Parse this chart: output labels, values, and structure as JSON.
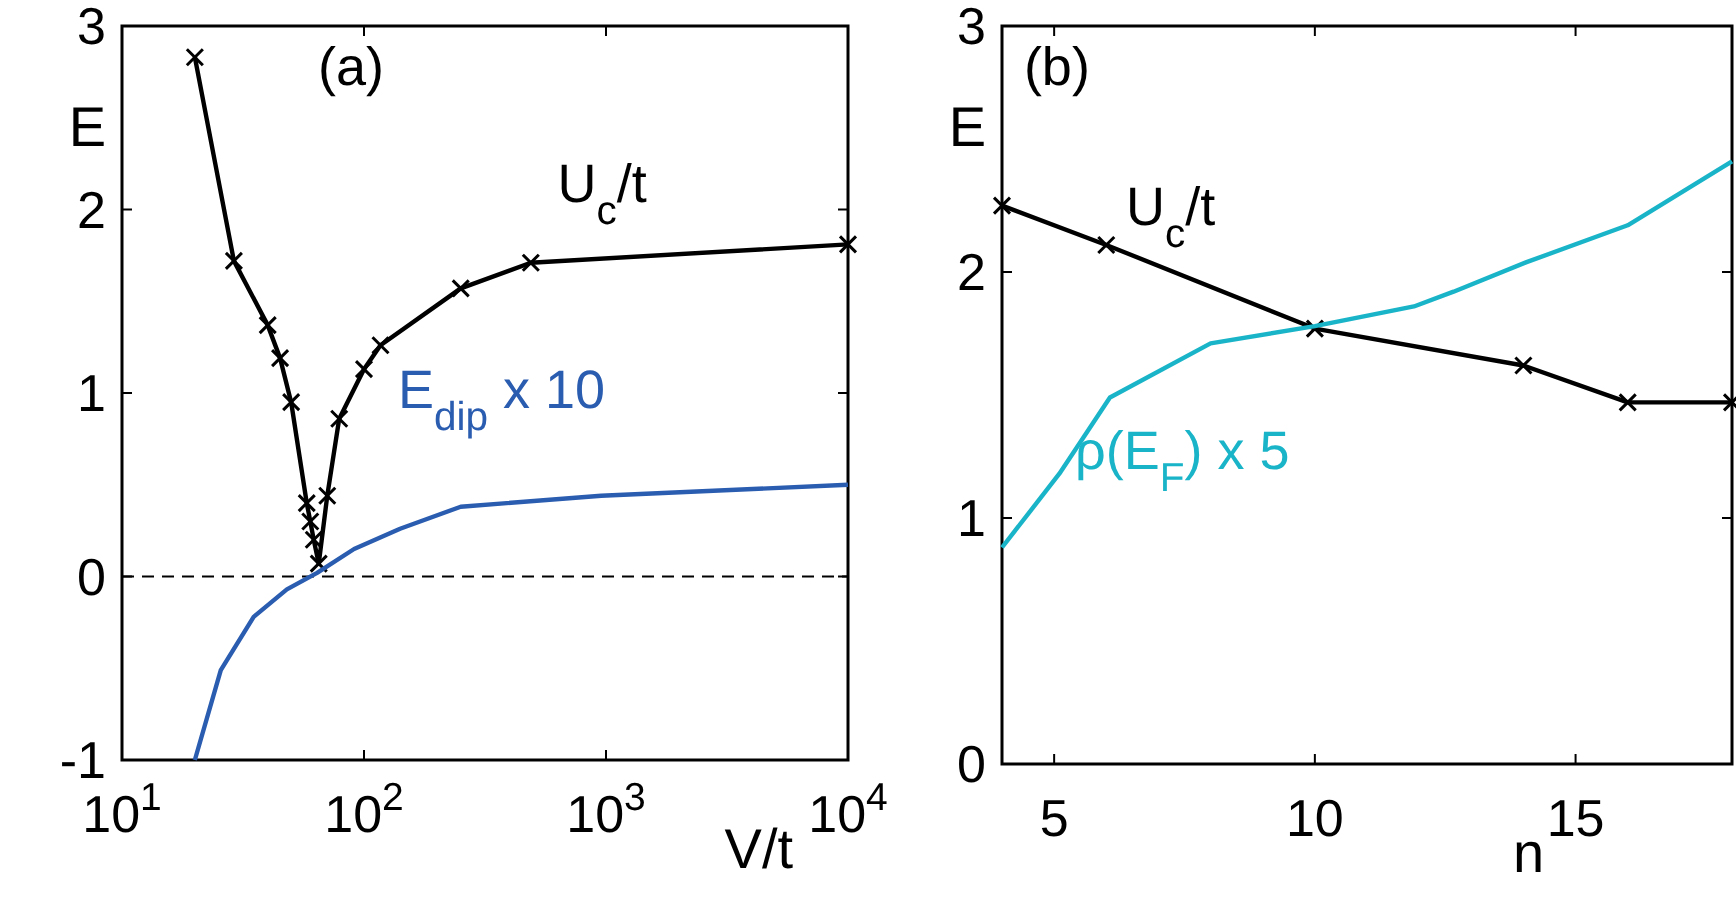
{
  "chart_data": [
    {
      "type": "line",
      "title": "(a)",
      "xlabel": "V/t",
      "ylabel": "E",
      "log": "x",
      "xlim": [
        10,
        10000
      ],
      "xticks": [
        {
          "value": 10,
          "label": "10$^{1}$"
        },
        {
          "value": 100,
          "label": "10$^{2}$"
        },
        {
          "value": 1000,
          "label": "10$^{3}$"
        },
        {
          "value": 10000,
          "label": "10$^{4}$"
        }
      ],
      "ylim": [
        -1,
        3
      ],
      "yticks": [
        -1,
        0,
        1,
        2,
        3
      ],
      "grid": false,
      "ref_lines": [
        {
          "axis": "y",
          "value": 0,
          "color": "#000000",
          "line_style": "dashed"
        }
      ],
      "series": [
        {
          "name": "U$_{c}$/t",
          "color": "#000000",
          "marker": "cross",
          "line_style": "solid",
          "x": [
            20,
            29,
            40,
            45,
            50,
            58,
            60,
            62,
            65,
            70.5,
            79,
            100,
            117,
            251,
            489,
            10000
          ],
          "values": [
            2.83,
            1.72,
            1.37,
            1.19,
            0.95,
            0.4,
            0.3,
            0.2,
            0.07,
            0.44,
            0.86,
            1.13,
            1.26,
            1.57,
            1.71,
            1.81
          ]
        },
        {
          "name": "E$_{dip}$ x 10",
          "color": "#2a5cb0",
          "marker": "none",
          "line_style": "solid",
          "x": [
            20,
            25.6,
            35,
            48,
            64,
            91,
            141,
            251,
            955,
            10000
          ],
          "values": [
            -1,
            -0.51,
            -0.22,
            -0.07,
            0.02,
            0.15,
            0.26,
            0.38,
            0.44,
            0.5
          ]
        }
      ]
    },
    {
      "type": "line",
      "title": "(b)",
      "xlabel": "n",
      "ylabel": "E",
      "xlim": [
        4,
        18
      ],
      "xticks": [
        5,
        10,
        15
      ],
      "ylim": [
        0,
        3
      ],
      "yticks": [
        0,
        1,
        2,
        3
      ],
      "grid": false,
      "series": [
        {
          "name": "U$_{c}$/t",
          "color": "#000000",
          "marker": "cross",
          "line_style": "solid",
          "x": [
            4,
            6,
            10,
            14,
            16,
            18
          ],
          "values": [
            2.27,
            2.11,
            1.77,
            1.62,
            1.47,
            1.47
          ]
        },
        {
          "name": "ρ(E$_{F}$) x 5",
          "color": "#1ab4c8",
          "marker": "none",
          "line_style": "solid",
          "x": [
            4,
            5.1,
            6.07,
            8,
            10,
            11.9,
            12.66,
            14.06,
            16,
            18
          ],
          "values": [
            0.88,
            1.18,
            1.49,
            1.71,
            1.78,
            1.86,
            1.92,
            2.04,
            2.19,
            2.45
          ]
        }
      ]
    }
  ]
}
